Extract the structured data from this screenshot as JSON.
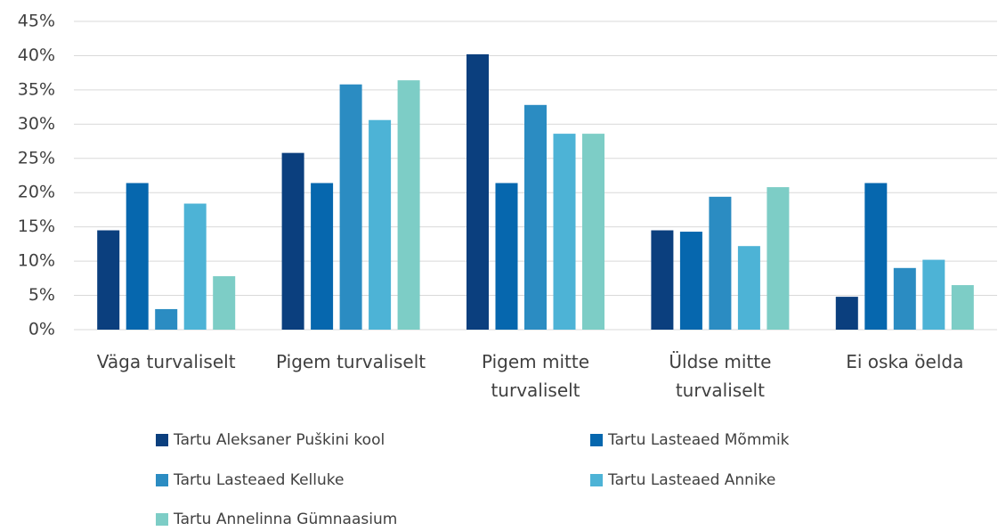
{
  "chart_data": {
    "type": "bar",
    "categories": [
      "Väga turvaliselt",
      "Pigem turvaliselt",
      "Pigem mitte turvaliselt",
      "Üldse mitte turvaliselt",
      "Ei oska öelda"
    ],
    "series": [
      {
        "name": "Tartu Aleksaner Puškini kool",
        "color": "#0b3f7e",
        "values": [
          14.5,
          25.8,
          40.2,
          14.5,
          4.8
        ]
      },
      {
        "name": "Tartu Lasteaed Mõmmik",
        "color": "#0667ae",
        "values": [
          21.4,
          21.4,
          21.4,
          14.3,
          21.4
        ]
      },
      {
        "name": "Tartu Lasteaed Kelluke",
        "color": "#2b8cc2",
        "values": [
          3.0,
          35.8,
          32.8,
          19.4,
          9.0
        ]
      },
      {
        "name": "Tartu Lasteaed Annike",
        "color": "#4db3d6",
        "values": [
          18.4,
          30.6,
          28.6,
          12.2,
          10.2
        ]
      },
      {
        "name": "Tartu Annelinna Gümnaasium",
        "color": "#7dcdc6",
        "values": [
          7.8,
          36.4,
          28.6,
          20.8,
          6.5
        ]
      }
    ],
    "ylim": [
      0,
      45
    ],
    "yticks": [
      {
        "value": 0,
        "label": "0%"
      },
      {
        "value": 5,
        "label": "5%"
      },
      {
        "value": 10,
        "label": "10%"
      },
      {
        "value": 15,
        "label": "15%"
      },
      {
        "value": 20,
        "label": "20%"
      },
      {
        "value": 25,
        "label": "25%"
      },
      {
        "value": 30,
        "label": "30%"
      },
      {
        "value": 35,
        "label": "35%"
      },
      {
        "value": 40,
        "label": "40%"
      },
      {
        "value": 45,
        "label": "45%"
      }
    ],
    "grid": true,
    "legend": "bottom"
  }
}
